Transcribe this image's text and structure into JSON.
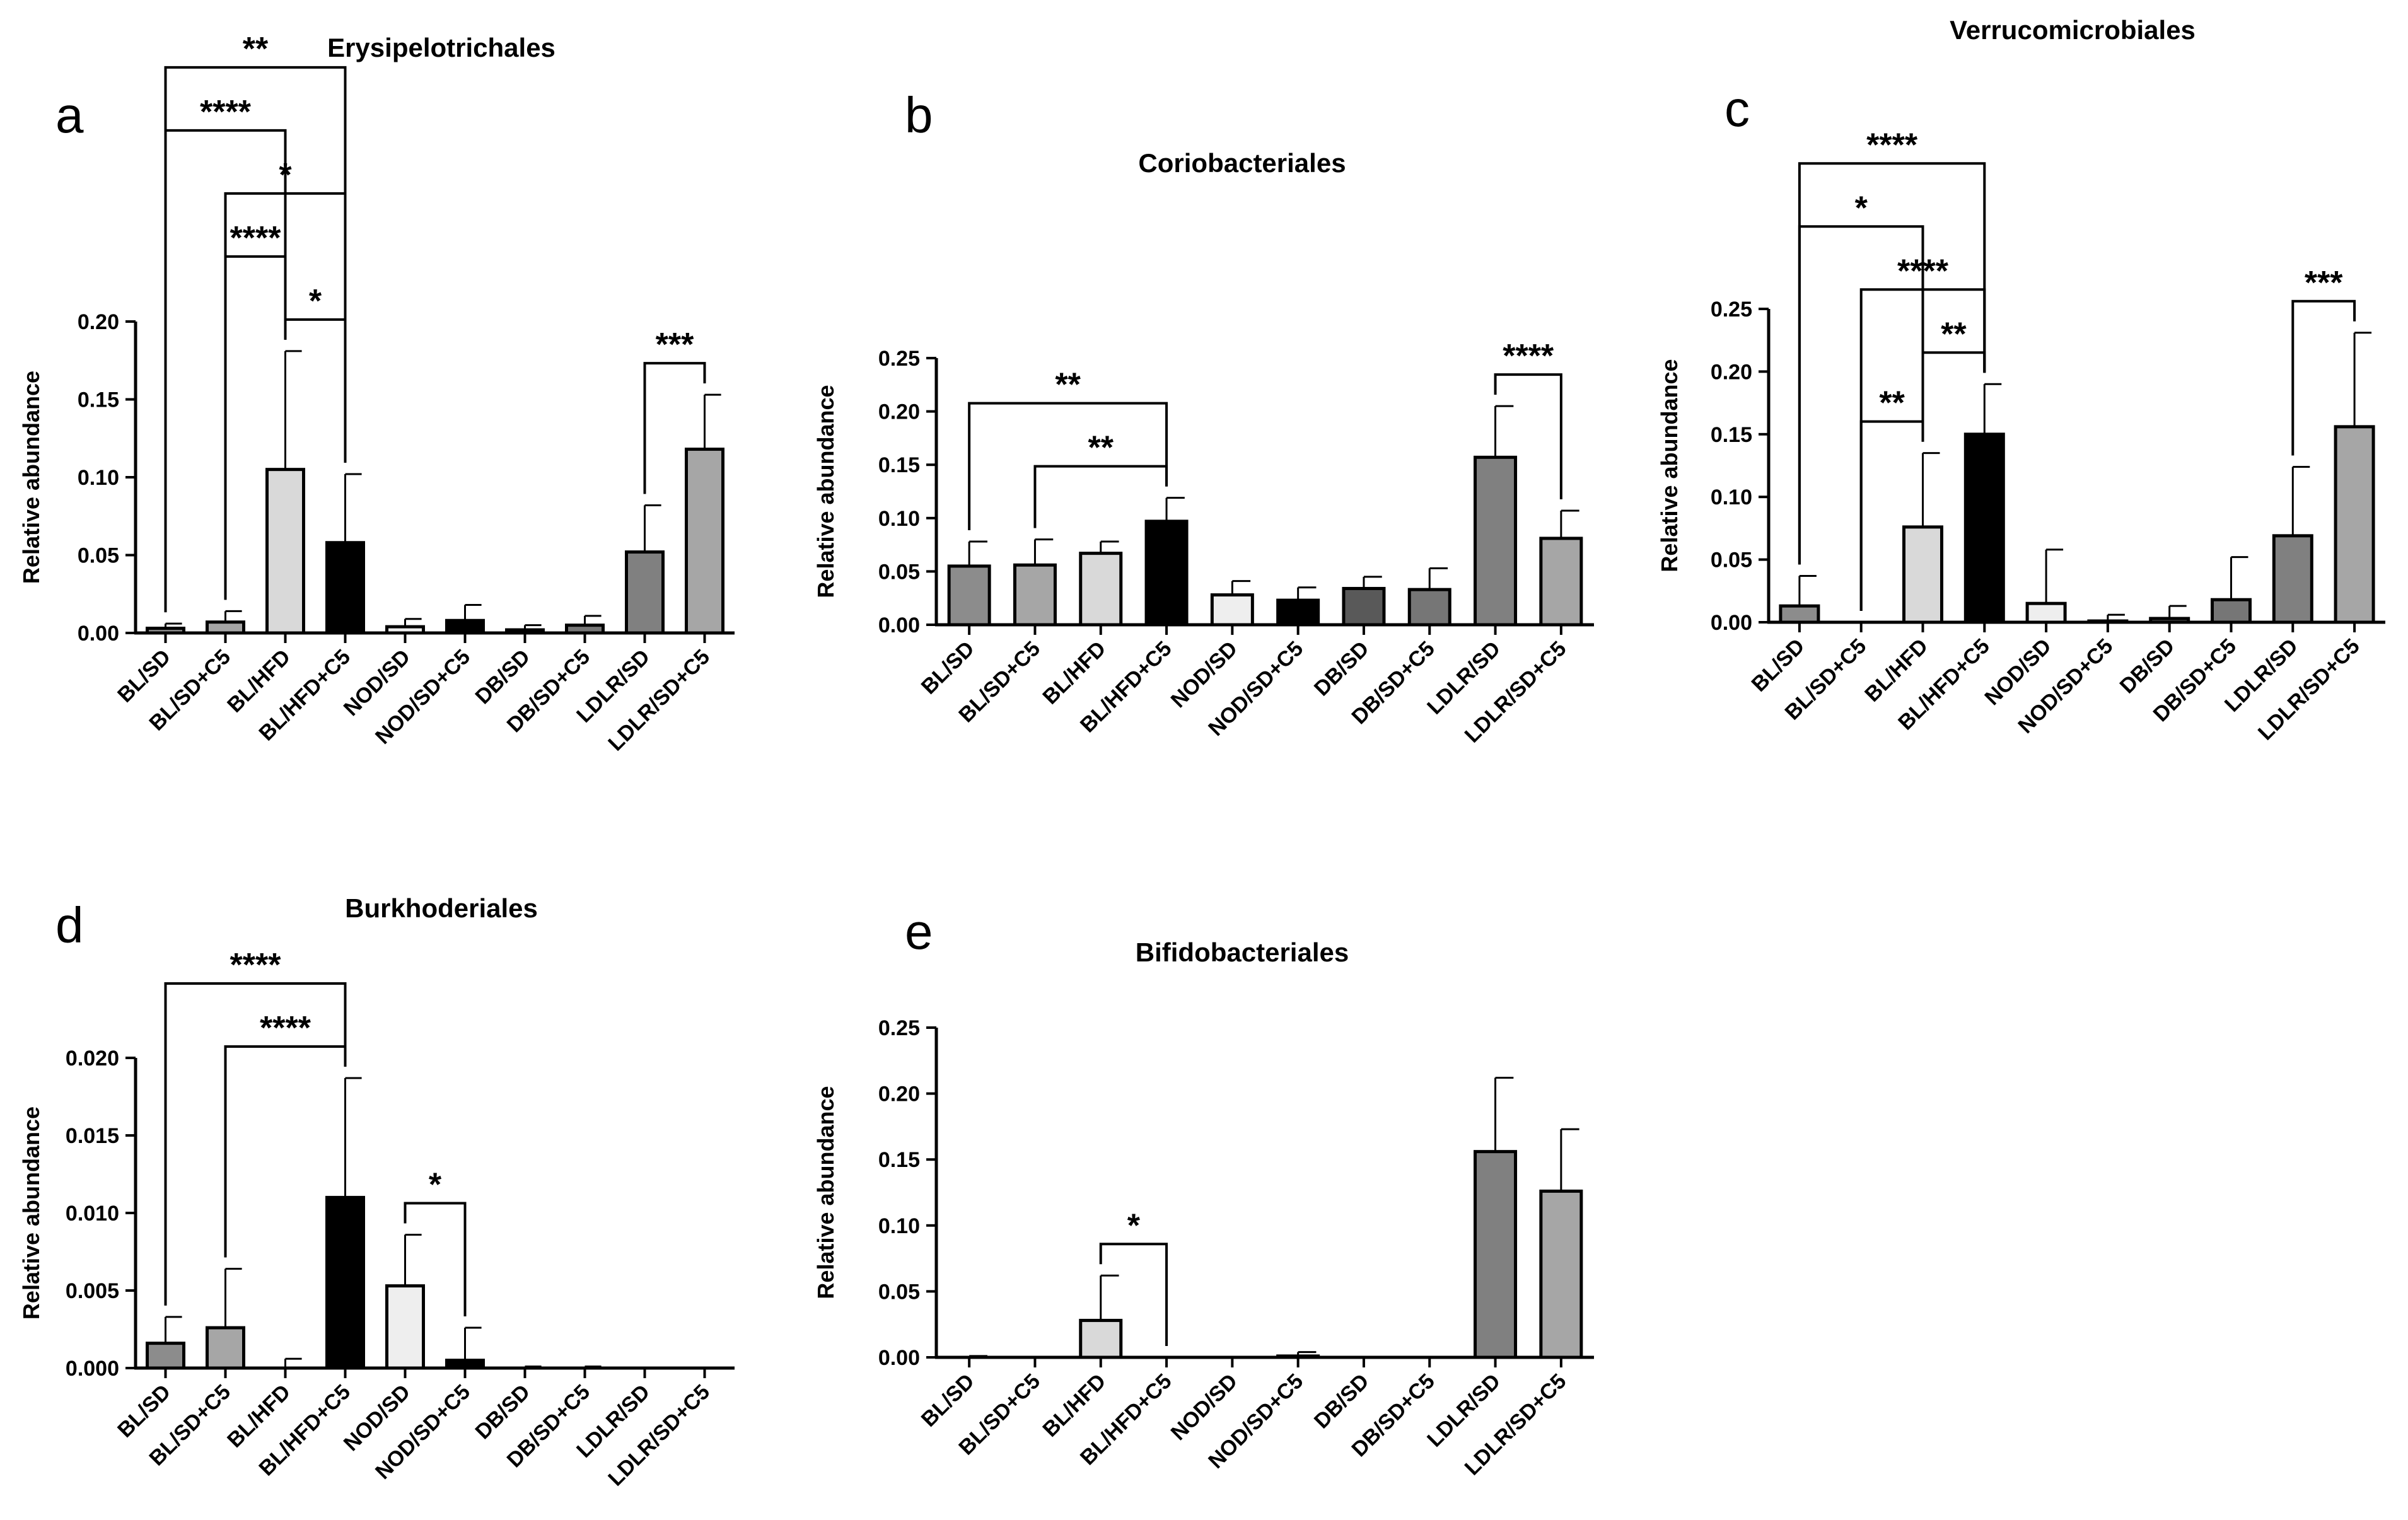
{
  "figure": {
    "colors": {
      "BL/SD": "#8c8c8c",
      "BL/SD+C5": "#a6a6a6",
      "BL/HFD": "#d9d9d9",
      "BL/HFD+C5": "#000000",
      "NOD/SD": "#eeeeee",
      "NOD/SD+C5": "#000000",
      "DB/SD": "#595959",
      "DB/SD+C5": "#767676",
      "LDLR/SD": "#808080",
      "LDLR/SD+C5": "#a6a6a6"
    }
  },
  "chart_data": [
    {
      "id": "a",
      "panel_label": "a",
      "type": "bar",
      "title": "Erysipelotrichales",
      "ylabel": "Relative abundance",
      "ylim": [
        0,
        0.2
      ],
      "yticks": [
        "0.00",
        "0.05",
        "0.10",
        "0.15",
        "0.20"
      ],
      "categories": [
        "BL/SD",
        "BL/SD+C5",
        "BL/HFD",
        "BL/HFD+C5",
        "NOD/SD",
        "NOD/SD+C5",
        "DB/SD",
        "DB/SD+C5",
        "LDLR/SD",
        "LDLR/SD+C5"
      ],
      "values": [
        0.003,
        0.007,
        0.105,
        0.058,
        0.004,
        0.008,
        0.002,
        0.005,
        0.052,
        0.118
      ],
      "errors": [
        0.003,
        0.007,
        0.076,
        0.044,
        0.005,
        0.01,
        0.003,
        0.006,
        0.03,
        0.035
      ],
      "significance": [
        {
          "from": "BL/SD",
          "to": "BL/HFD+C5",
          "label": "**"
        },
        {
          "from": "BL/SD+C5",
          "to": "BL/HFD+C5",
          "label": "*"
        },
        {
          "from": "BL/SD",
          "to": "BL/HFD",
          "label": "****"
        },
        {
          "from": "BL/HFD",
          "to": "BL/HFD+C5",
          "label": "*"
        },
        {
          "from": "BL/SD+C5",
          "to": "BL/HFD",
          "label": "****"
        },
        {
          "from": "LDLR/SD",
          "to": "LDLR/SD+C5",
          "label": "***"
        }
      ]
    },
    {
      "id": "b",
      "panel_label": "b",
      "type": "bar",
      "title": "Coriobacteriales",
      "ylabel": "Relative abundance",
      "ylim": [
        0,
        0.25
      ],
      "yticks": [
        "0.00",
        "0.05",
        "0.10",
        "0.15",
        "0.20",
        "0.25"
      ],
      "categories": [
        "BL/SD",
        "BL/SD+C5",
        "BL/HFD",
        "BL/HFD+C5",
        "NOD/SD",
        "NOD/SD+C5",
        "DB/SD",
        "DB/SD+C5",
        "LDLR/SD",
        "LDLR/SD+C5"
      ],
      "values": [
        0.055,
        0.056,
        0.067,
        0.097,
        0.028,
        0.023,
        0.034,
        0.033,
        0.157,
        0.081
      ],
      "errors": [
        0.023,
        0.024,
        0.011,
        0.022,
        0.013,
        0.012,
        0.011,
        0.02,
        0.048,
        0.026
      ],
      "significance": [
        {
          "from": "BL/SD",
          "to": "BL/HFD+C5",
          "label": "**"
        },
        {
          "from": "BL/SD+C5",
          "to": "BL/HFD+C5",
          "label": "**"
        },
        {
          "from": "LDLR/SD",
          "to": "LDLR/SD+C5",
          "label": "****"
        }
      ]
    },
    {
      "id": "c",
      "panel_label": "c",
      "type": "bar",
      "title": "Verrucomicrobiales",
      "ylabel": "Relative abundance",
      "ylim": [
        0,
        0.25
      ],
      "yticks": [
        "0.00",
        "0.05",
        "0.10",
        "0.15",
        "0.20",
        "0.25"
      ],
      "categories": [
        "BL/SD",
        "BL/SD+C5",
        "BL/HFD",
        "BL/HFD+C5",
        "NOD/SD",
        "NOD/SD+C5",
        "DB/SD",
        "DB/SD+C5",
        "LDLR/SD",
        "LDLR/SD+C5"
      ],
      "values": [
        0.013,
        0.0,
        0.076,
        0.15,
        0.015,
        0.001,
        0.003,
        0.018,
        0.069,
        0.156
      ],
      "errors": [
        0.024,
        0.0,
        0.059,
        0.04,
        0.043,
        0.005,
        0.01,
        0.034,
        0.055,
        0.075
      ],
      "significance": [
        {
          "from": "BL/SD",
          "to": "BL/HFD+C5",
          "label": "****"
        },
        {
          "from": "BL/SD+C5",
          "to": "BL/HFD+C5",
          "label": "****"
        },
        {
          "from": "BL/SD",
          "to": "BL/HFD",
          "label": "*"
        },
        {
          "from": "BL/SD+C5",
          "to": "BL/HFD",
          "label": "**"
        },
        {
          "from": "BL/HFD",
          "to": "BL/HFD+C5",
          "label": "**"
        },
        {
          "from": "LDLR/SD",
          "to": "LDLR/SD+C5",
          "label": "***"
        }
      ]
    },
    {
      "id": "d",
      "panel_label": "d",
      "type": "bar",
      "title": "Burkhoderiales",
      "ylabel": "Relative abundance",
      "ylim": [
        0,
        0.02
      ],
      "yticks": [
        "0.000",
        "0.005",
        "0.010",
        "0.015",
        "0.020"
      ],
      "categories": [
        "BL/SD",
        "BL/SD+C5",
        "BL/HFD",
        "BL/HFD+C5",
        "NOD/SD",
        "NOD/SD+C5",
        "DB/SD",
        "DB/SD+C5",
        "LDLR/SD",
        "LDLR/SD+C5"
      ],
      "values": [
        0.0016,
        0.0026,
        0.0,
        0.011,
        0.0053,
        0.0005,
        0.0,
        0.0,
        0.0,
        0.0
      ],
      "errors": [
        0.0017,
        0.0038,
        0.0006,
        0.0077,
        0.0033,
        0.0021,
        0.0001,
        0.0001,
        0.0,
        0.0
      ],
      "significance": [
        {
          "from": "BL/SD",
          "to": "BL/HFD+C5",
          "label": "****"
        },
        {
          "from": "BL/SD+C5",
          "to": "BL/HFD+C5",
          "label": "****"
        },
        {
          "from": "NOD/SD",
          "to": "NOD/SD+C5",
          "label": "*"
        }
      ]
    },
    {
      "id": "e",
      "panel_label": "e",
      "type": "bar",
      "title": "Bifidobacteriales",
      "ylabel": "Relative abundance",
      "ylim": [
        0,
        0.25
      ],
      "yticks": [
        "0.00",
        "0.05",
        "0.10",
        "0.15",
        "0.20",
        "0.25"
      ],
      "categories": [
        "BL/SD",
        "BL/SD+C5",
        "BL/HFD",
        "BL/HFD+C5",
        "NOD/SD",
        "NOD/SD+C5",
        "DB/SD",
        "DB/SD+C5",
        "LDLR/SD",
        "LDLR/SD+C5"
      ],
      "values": [
        0.0,
        0.0,
        0.028,
        0.0,
        0.0,
        0.001,
        0.0,
        0.0,
        0.156,
        0.126
      ],
      "errors": [
        0.001,
        0.0,
        0.034,
        0.0,
        0.0,
        0.003,
        0.0,
        0.0,
        0.056,
        0.047
      ],
      "significance": [
        {
          "from": "BL/HFD",
          "to": "BL/HFD+C5",
          "label": "*"
        }
      ]
    }
  ]
}
